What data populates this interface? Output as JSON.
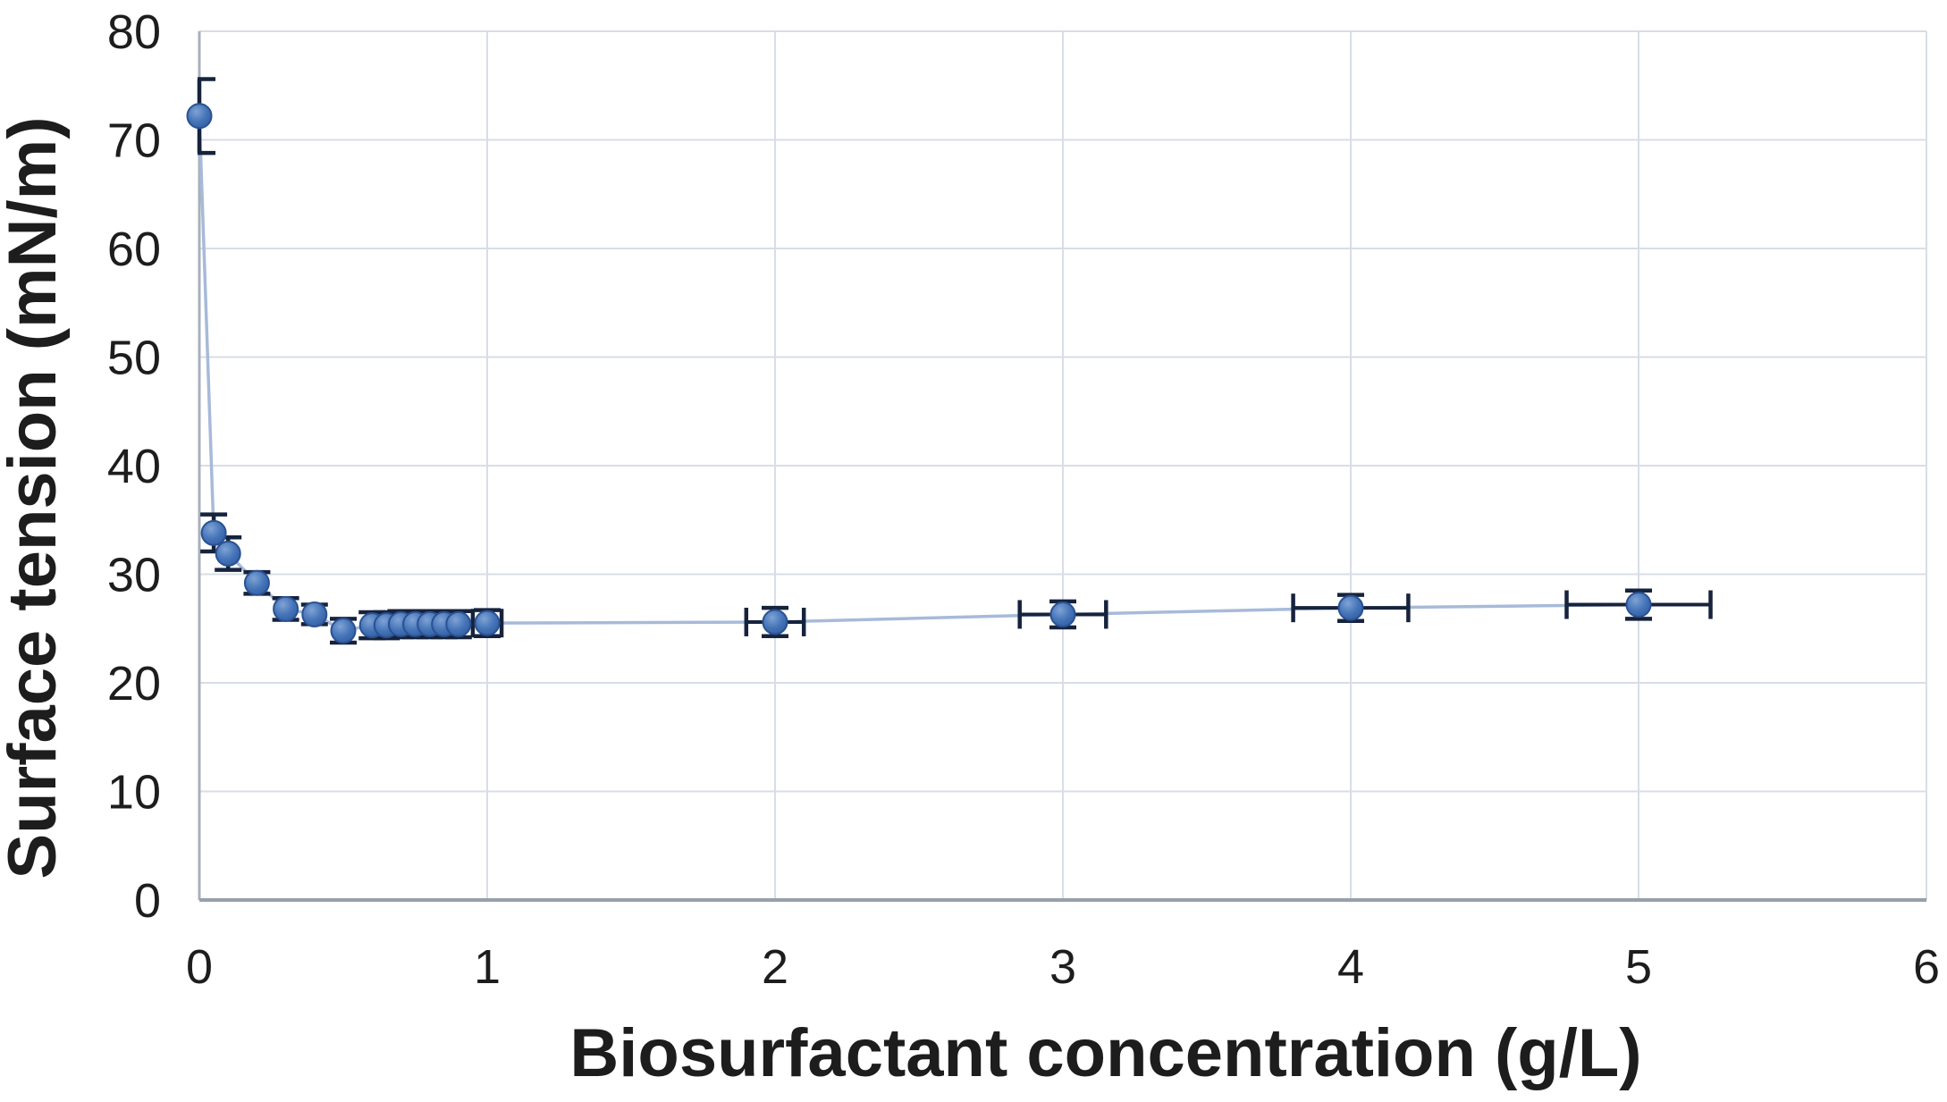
{
  "chart_data": {
    "type": "line",
    "title": "",
    "xlabel": "Biosurfactant concentration (g/L)",
    "ylabel": "Surface tension (mN/m)",
    "xlim": [
      0,
      6
    ],
    "ylim": [
      0,
      80
    ],
    "xticks": [
      0,
      1,
      2,
      3,
      4,
      5,
      6
    ],
    "yticks": [
      0,
      10,
      20,
      30,
      40,
      50,
      60,
      70,
      80
    ],
    "grid": true,
    "legend": "none",
    "series_name": "Surface tension",
    "points": [
      {
        "x": 0,
        "y": 72.2,
        "yerr": 3.4,
        "xerr": 0
      },
      {
        "x": 0.05,
        "y": 33.8,
        "yerr": 1.7,
        "xerr": 0
      },
      {
        "x": 0.1,
        "y": 31.9,
        "yerr": 1.5,
        "xerr": 0
      },
      {
        "x": 0.2,
        "y": 29.2,
        "yerr": 1.0,
        "xerr": 0
      },
      {
        "x": 0.3,
        "y": 26.8,
        "yerr": 1.0,
        "xerr": 0
      },
      {
        "x": 0.4,
        "y": 26.3,
        "yerr": 0.9,
        "xerr": 0
      },
      {
        "x": 0.5,
        "y": 24.8,
        "yerr": 1.1,
        "xerr": 0
      },
      {
        "x": 0.6,
        "y": 25.3,
        "yerr": 1.2,
        "xerr": 0
      },
      {
        "x": 0.65,
        "y": 25.3,
        "yerr": 1.2,
        "xerr": 0
      },
      {
        "x": 0.7,
        "y": 25.4,
        "yerr": 1.2,
        "xerr": 0
      },
      {
        "x": 0.75,
        "y": 25.4,
        "yerr": 1.2,
        "xerr": 0
      },
      {
        "x": 0.8,
        "y": 25.4,
        "yerr": 1.2,
        "xerr": 0
      },
      {
        "x": 0.85,
        "y": 25.4,
        "yerr": 1.2,
        "xerr": 0
      },
      {
        "x": 0.9,
        "y": 25.4,
        "yerr": 1.2,
        "xerr": 0
      },
      {
        "x": 1.0,
        "y": 25.5,
        "yerr": 1.2,
        "xerr": 0.05
      },
      {
        "x": 2.0,
        "y": 25.6,
        "yerr": 1.3,
        "xerr": 0.1
      },
      {
        "x": 3.0,
        "y": 26.3,
        "yerr": 1.2,
        "xerr": 0.15
      },
      {
        "x": 4.0,
        "y": 26.9,
        "yerr": 1.2,
        "xerr": 0.2
      },
      {
        "x": 5.0,
        "y": 27.2,
        "yerr": 1.3,
        "xerr": 0.25
      }
    ],
    "colors": {
      "marker": "#3D6CB4",
      "marker_edge": "#2A5193",
      "marker_highlight": "#7FA3D4",
      "series_line": "#A7BAD9",
      "error_bar": "#16233D",
      "gridline": "#D8DDE6",
      "y_axis_line": "#A8B0BC",
      "x_axis_line": "#97A0AC",
      "text": "#1D1D1D"
    }
  }
}
